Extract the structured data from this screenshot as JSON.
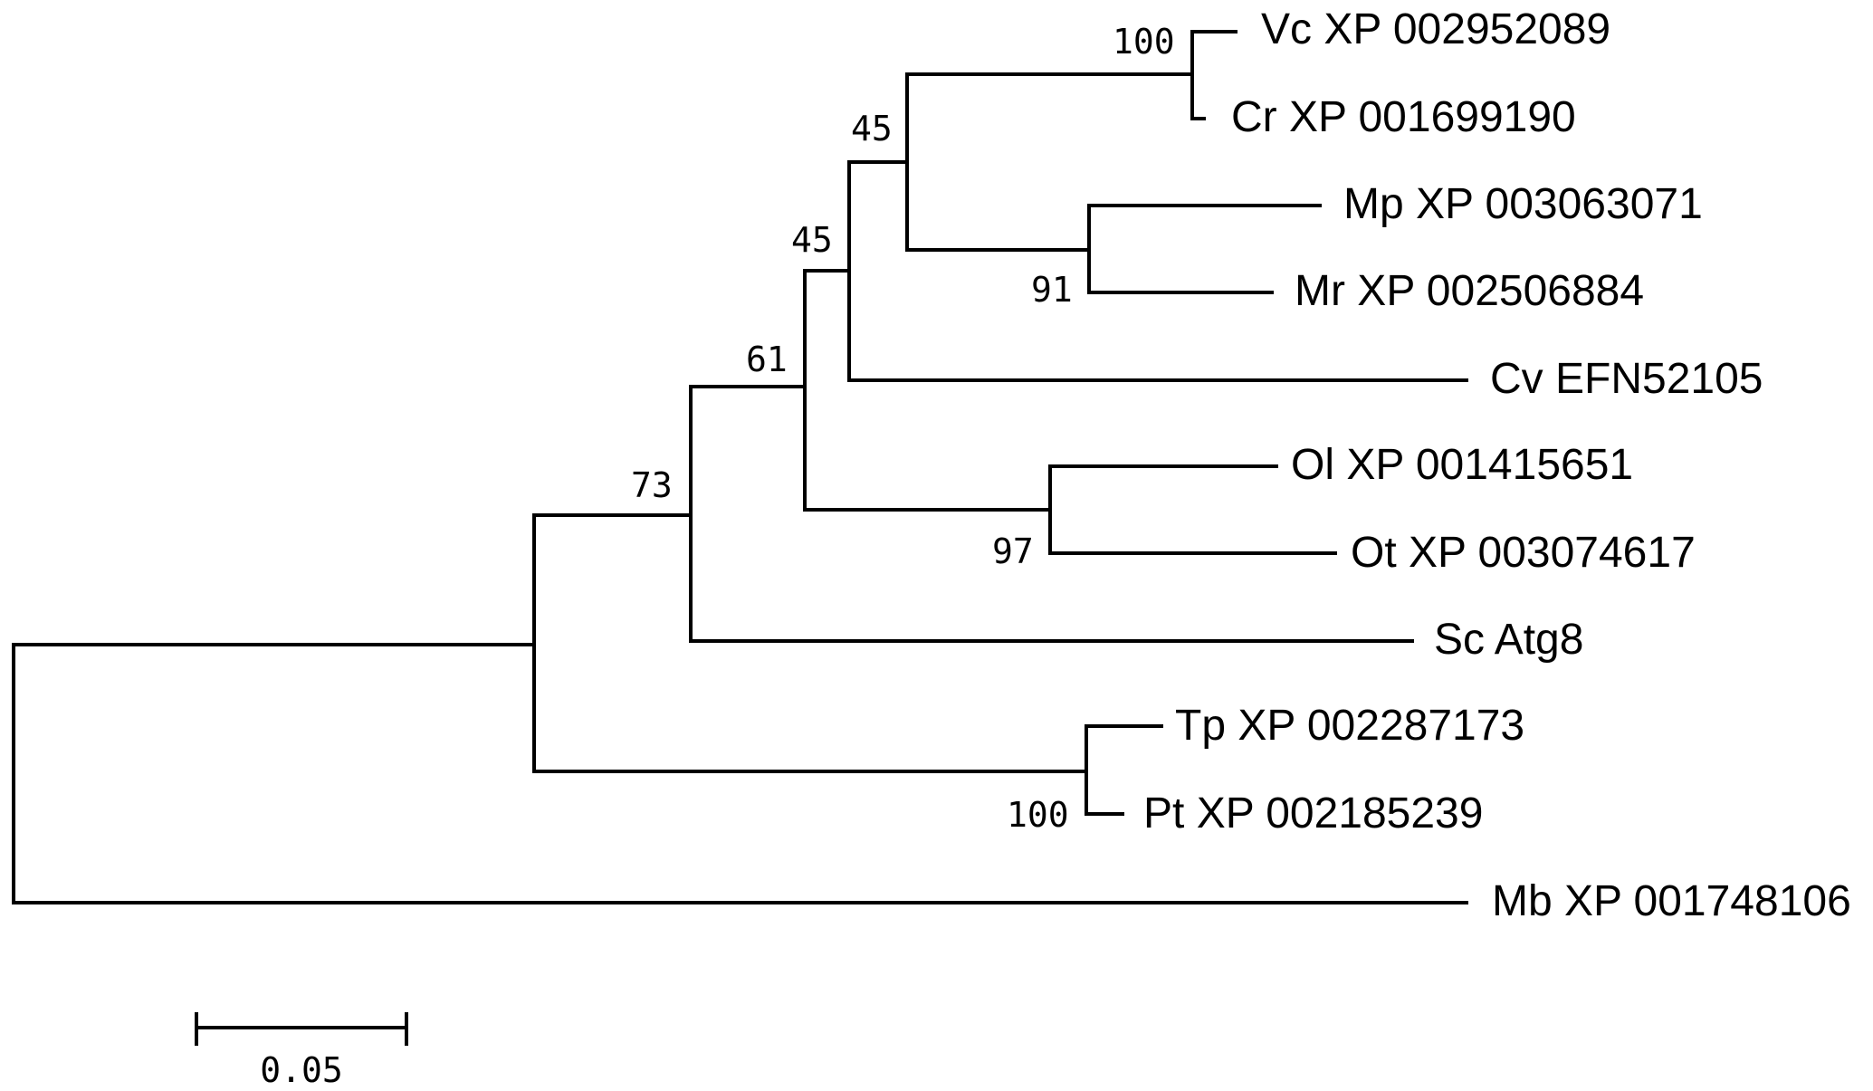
{
  "tree": {
    "leaves": {
      "vc": "Vc XP 002952089",
      "cr": "Cr XP 001699190",
      "mp": "Mp XP 003063071",
      "mr": "Mr XP 002506884",
      "cv": "Cv EFN52105",
      "ol": "Ol XP 001415651",
      "ot": "Ot XP 003074617",
      "sc": "Sc Atg8",
      "tp": "Tp XP 002287173",
      "pt": "Pt XP 002185239",
      "mb": "Mb XP 001748106"
    },
    "bootstrap": {
      "vc_cr": "100",
      "chlamy_mamiel": "45",
      "with_cv": "45",
      "core": "61",
      "with_sc": "73",
      "mamiel": "91",
      "ostreo": "97",
      "diatoms": "100"
    }
  },
  "scale_bar": {
    "label": "0.05",
    "value": 0.05
  },
  "colors": {
    "line": "#000000",
    "text": "#000000",
    "background": "#ffffff"
  }
}
